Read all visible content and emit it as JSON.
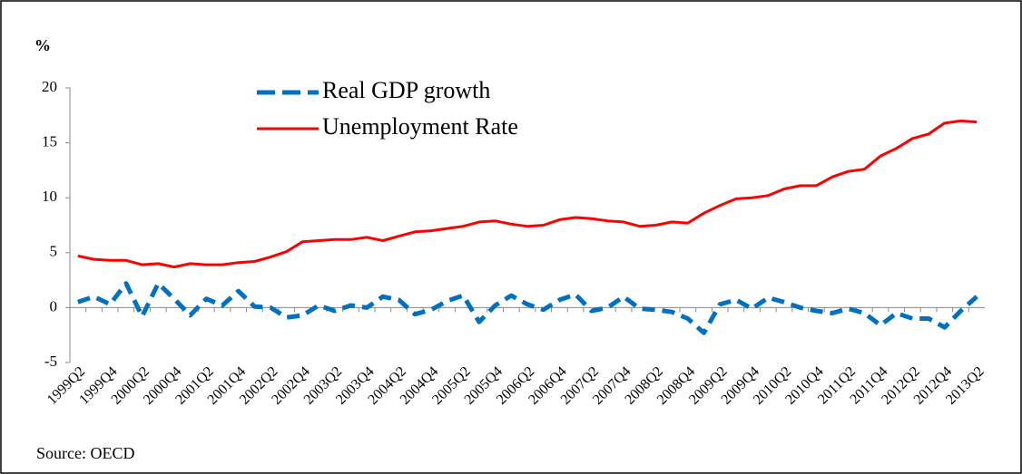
{
  "chart_data": {
    "type": "line",
    "y_label": "%",
    "source": "Source: OECD",
    "categories": [
      "1999Q2",
      null,
      "1999Q4",
      null,
      "2000Q2",
      null,
      "2000Q4",
      null,
      "2001Q2",
      null,
      "2001Q4",
      null,
      "2002Q2",
      null,
      "2002Q4",
      null,
      "2003Q2",
      null,
      "2003Q4",
      null,
      "2004Q2",
      null,
      "2004Q4",
      null,
      "2005Q2",
      null,
      "2005Q4",
      null,
      "2006Q2",
      null,
      "2006Q4",
      null,
      "2007Q2",
      null,
      "2007Q4",
      null,
      "2008Q2",
      null,
      "2008Q4",
      null,
      "2009Q2",
      null,
      "2009Q4",
      null,
      "2010Q2",
      null,
      "2010Q4",
      null,
      "2011Q2",
      null,
      "2011Q4",
      null,
      "2012Q2",
      null,
      "2012Q4",
      null,
      "2013Q2"
    ],
    "series": [
      {
        "name": "Real GDP growth",
        "color": "#0070c0",
        "dashed": true,
        "values": [
          0.5,
          1.0,
          0.3,
          2.2,
          -0.8,
          2.2,
          0.8,
          -0.7,
          0.8,
          0.2,
          1.5,
          0.1,
          0.0,
          -0.9,
          -0.7,
          0.2,
          -0.3,
          0.2,
          0.0,
          1.0,
          0.7,
          -0.6,
          -0.2,
          0.6,
          1.1,
          -1.3,
          0.2,
          1.1,
          0.3,
          -0.2,
          0.7,
          1.2,
          -0.3,
          0.0,
          1.0,
          -0.1,
          -0.2,
          -0.4,
          -1.0,
          -2.3,
          0.3,
          0.7,
          -0.1,
          0.9,
          0.5,
          0.0,
          -0.3,
          -0.5,
          -0.1,
          -0.5,
          -1.6,
          -0.5,
          -1.0,
          -1.0,
          -1.8,
          -0.3,
          1.0
        ]
      },
      {
        "name": "Unemployment Rate",
        "color": "#ff0000",
        "dashed": false,
        "values": [
          4.7,
          4.4,
          4.3,
          4.3,
          3.9,
          4.0,
          3.7,
          4.0,
          3.9,
          3.9,
          4.1,
          4.2,
          4.6,
          5.1,
          6.0,
          6.1,
          6.2,
          6.2,
          6.4,
          6.1,
          6.5,
          6.9,
          7.0,
          7.2,
          7.4,
          7.8,
          7.9,
          7.6,
          7.4,
          7.5,
          8.0,
          8.2,
          8.1,
          7.9,
          7.8,
          7.4,
          7.5,
          7.8,
          7.7,
          8.6,
          9.3,
          9.9,
          10.0,
          10.2,
          10.8,
          11.1,
          11.1,
          11.9,
          12.4,
          12.6,
          13.8,
          14.5,
          15.4,
          15.8,
          16.8,
          17.0,
          16.9
        ]
      }
    ],
    "ylim": [
      -5,
      20
    ],
    "yticks": [
      -5,
      0,
      5,
      10,
      15,
      20
    ],
    "grid": false,
    "legend": "top-left"
  }
}
